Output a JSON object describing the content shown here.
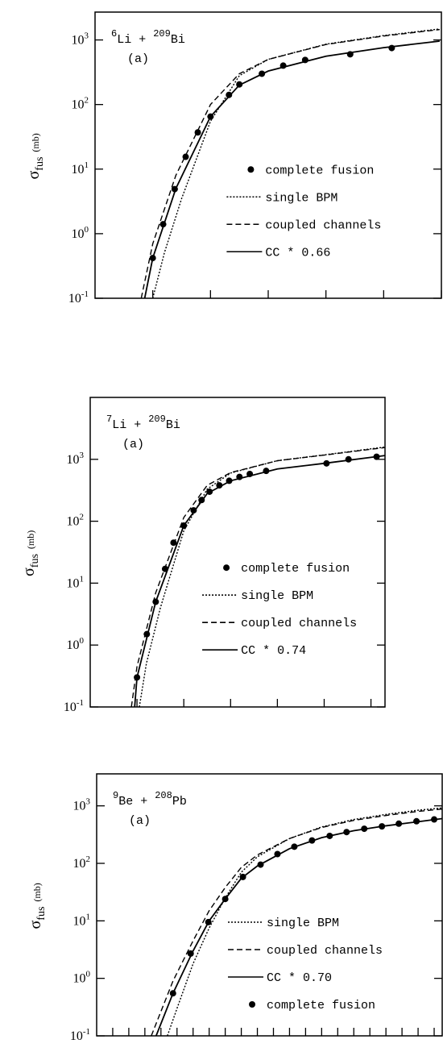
{
  "chart_data": [
    {
      "type": "line",
      "log_y": true,
      "reaction": [
        {
          "text": "6",
          "sup": true
        },
        {
          "text": "Li + ",
          "sup": false
        },
        {
          "text": "209",
          "sup": true
        },
        {
          "text": "Bi",
          "sup": false
        }
      ],
      "panel_label": "(a)",
      "ylabel": {
        "symbol": "σ",
        "subscript": "fus",
        "unit": "(mb)"
      },
      "legend": "right",
      "xlim": [
        0,
        6
      ],
      "xticks": [
        1,
        2,
        3,
        4,
        5,
        6
      ],
      "ylim": [
        0.1,
        2700
      ],
      "yticks": [
        {
          "value": 0.1,
          "label": "10",
          "exponent": "-1"
        },
        {
          "value": 1,
          "label": "10",
          "exponent": "0"
        },
        {
          "value": 10,
          "label": "10",
          "exponent": "1"
        },
        {
          "value": 100,
          "label": "10",
          "exponent": "2"
        },
        {
          "value": 1000,
          "label": "10",
          "exponent": "3"
        }
      ],
      "series": [
        {
          "name": "complete fusion",
          "style": "points",
          "color": "#000000",
          "x": [
            1.0,
            1.18,
            1.38,
            1.57,
            1.78,
            2.0,
            2.32,
            2.5,
            2.89,
            3.26,
            3.64,
            4.42,
            5.14
          ],
          "values": [
            0.42,
            1.4,
            4.9,
            15.5,
            37,
            65,
            141,
            205,
            300,
            400,
            490,
            600,
            750
          ]
        },
        {
          "name": "single BPM",
          "style": "dotted",
          "color": "#000000",
          "x": [
            1.0,
            1.2,
            1.5,
            2.0,
            2.5,
            3.0,
            4.0,
            5.0,
            5.97
          ],
          "values": [
            0.1,
            0.5,
            3.5,
            55,
            280,
            500,
            860,
            1170,
            1480
          ]
        },
        {
          "name": "coupled channels",
          "style": "dashed",
          "color": "#000000",
          "x": [
            0.8,
            1.0,
            1.4,
            2.0,
            2.5,
            3.0,
            4.0,
            5.0,
            5.97
          ],
          "values": [
            0.1,
            0.7,
            8,
            100,
            300,
            500,
            850,
            1150,
            1450
          ]
        },
        {
          "name": "CC * 0.66",
          "style": "solid",
          "color": "#000000",
          "x": [
            0.86,
            1.0,
            1.4,
            2.0,
            2.5,
            3.0,
            4.0,
            5.0,
            5.97
          ],
          "values": [
            0.1,
            0.42,
            5,
            65,
            200,
            330,
            560,
            760,
            960
          ]
        }
      ]
    },
    {
      "type": "line",
      "log_y": true,
      "reaction": [
        {
          "text": "7",
          "sup": true
        },
        {
          "text": "Li + ",
          "sup": false
        },
        {
          "text": "209",
          "sup": true
        },
        {
          "text": "Bi",
          "sup": false
        }
      ],
      "panel_label": "(a)",
      "ylabel": {
        "symbol": "σ",
        "subscript": "fus",
        "unit": "(mb)"
      },
      "legend": "right",
      "xlim": [
        0,
        6.3
      ],
      "xticks": [
        1,
        2,
        3,
        4,
        5,
        6
      ],
      "ylim": [
        0.1,
        10000
      ],
      "yticks": [
        {
          "value": 0.1,
          "label": "10",
          "exponent": "-1"
        },
        {
          "value": 1,
          "label": "10",
          "exponent": "0"
        },
        {
          "value": 10,
          "label": "10",
          "exponent": "1"
        },
        {
          "value": 100,
          "label": "10",
          "exponent": "2"
        },
        {
          "value": 1000,
          "label": "10",
          "exponent": "3"
        }
      ],
      "series": [
        {
          "name": "complete fusion",
          "style": "points",
          "color": "#000000",
          "x": [
            1.0,
            1.21,
            1.4,
            1.6,
            1.78,
            2.0,
            2.21,
            2.38,
            2.55,
            2.76,
            2.97,
            3.19,
            3.41,
            3.76,
            5.05,
            5.52,
            6.12
          ],
          "values": [
            0.3,
            1.5,
            5,
            17,
            45,
            85,
            150,
            220,
            300,
            380,
            450,
            520,
            580,
            650,
            860,
            1000,
            1100
          ]
        },
        {
          "name": "single BPM",
          "style": "dotted",
          "color": "#000000",
          "x": [
            1.05,
            1.2,
            1.5,
            2.0,
            2.5,
            3.0,
            4.0,
            5.0,
            6.3
          ],
          "values": [
            0.1,
            0.5,
            4,
            70,
            330,
            600,
            950,
            1180,
            1580
          ]
        },
        {
          "name": "coupled channels",
          "style": "dashed",
          "color": "#000000",
          "x": [
            0.88,
            1.0,
            1.4,
            2.0,
            2.5,
            3.0,
            4.0,
            5.0,
            6.3
          ],
          "values": [
            0.1,
            0.45,
            7,
            115,
            380,
            610,
            950,
            1170,
            1550
          ]
        },
        {
          "name": "CC * 0.74",
          "style": "solid",
          "color": "#000000",
          "x": [
            0.95,
            1.0,
            1.4,
            2.0,
            2.5,
            3.0,
            4.0,
            5.0,
            6.3
          ],
          "values": [
            0.1,
            0.3,
            5,
            85,
            280,
            450,
            700,
            860,
            1150
          ]
        }
      ]
    },
    {
      "type": "line",
      "log_y": true,
      "reaction": [
        {
          "text": "9",
          "sup": true
        },
        {
          "text": "Be + ",
          "sup": false
        },
        {
          "text": "208",
          "sup": true
        },
        {
          "text": "Pb",
          "sup": false
        }
      ],
      "panel_label": "(a)",
      "ylabel": {
        "symbol": "σ",
        "subscript": "fus",
        "unit": "(mb)"
      },
      "legend": "lower right",
      "xlim": [
        0,
        21.5
      ],
      "xticks": [
        1,
        2,
        3,
        4,
        5,
        6,
        7,
        8,
        9,
        10,
        11,
        12,
        13,
        14,
        15,
        16,
        17,
        18,
        19,
        20,
        21
      ],
      "ylim": [
        0.1,
        3600
      ],
      "yticks": [
        {
          "value": 0.1,
          "label": "10",
          "exponent": "-1"
        },
        {
          "value": 1,
          "label": "10",
          "exponent": "0"
        },
        {
          "value": 10,
          "label": "10",
          "exponent": "1"
        },
        {
          "value": 100,
          "label": "10",
          "exponent": "2"
        },
        {
          "value": 1000,
          "label": "10",
          "exponent": "3"
        }
      ],
      "series": [
        {
          "name": "single BPM",
          "style": "dotted",
          "color": "#000000",
          "x": [
            4.4,
            5,
            6,
            7,
            8,
            9,
            10,
            12,
            14,
            16,
            18,
            20,
            21.5
          ],
          "values": [
            0.1,
            0.3,
            1.8,
            7.5,
            25,
            70,
            130,
            270,
            430,
            580,
            710,
            840,
            920
          ]
        },
        {
          "name": "coupled channels",
          "style": "dashed",
          "color": "#000000",
          "x": [
            3.4,
            4.75,
            6,
            7,
            8,
            9,
            10,
            12,
            14,
            16,
            18,
            20,
            21.5
          ],
          "values": [
            0.1,
            0.9,
            4.5,
            15,
            38,
            85,
            140,
            270,
            420,
            560,
            680,
            800,
            880
          ]
        },
        {
          "name": "CC * 0.70",
          "style": "solid",
          "color": "#000000",
          "x": [
            3.7,
            4.75,
            6,
            7,
            8,
            9,
            10,
            12,
            14,
            16,
            18,
            20,
            21.5
          ],
          "values": [
            0.1,
            0.55,
            3,
            10,
            24,
            55,
            90,
            180,
            280,
            370,
            450,
            530,
            600
          ]
        },
        {
          "name": "complete fusion",
          "style": "points",
          "color": "#000000",
          "x": [
            4.75,
            5.85,
            6.95,
            8,
            9.1,
            10.2,
            11.25,
            12.3,
            13.4,
            14.5,
            15.55,
            16.65,
            17.75,
            18.8,
            19.9,
            21
          ],
          "values": [
            0.55,
            2.7,
            9.5,
            24,
            58,
            95,
            145,
            195,
            250,
            300,
            350,
            400,
            440,
            490,
            540,
            580
          ]
        }
      ]
    }
  ]
}
